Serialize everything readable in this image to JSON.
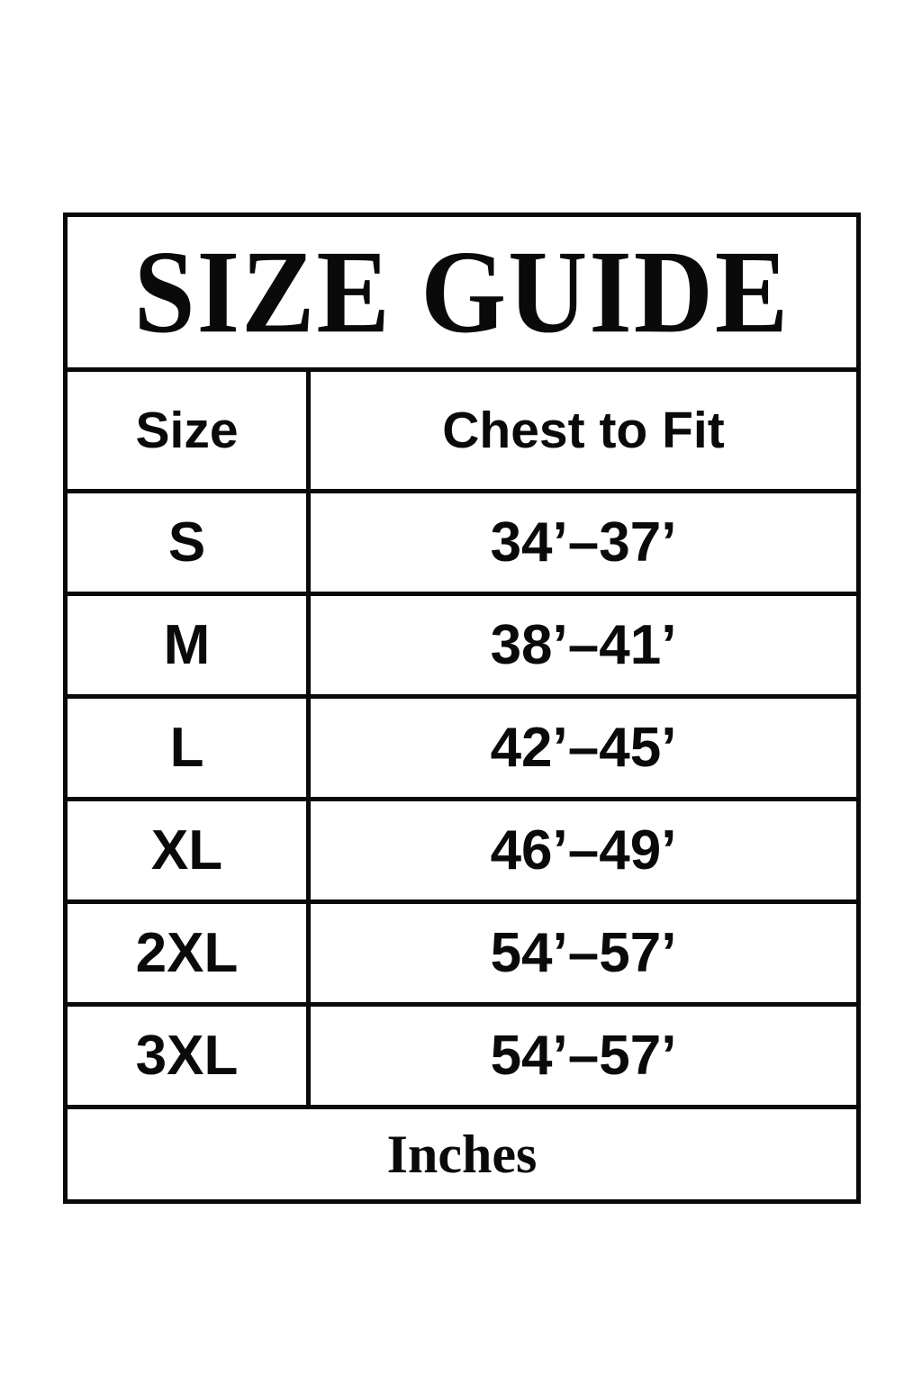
{
  "title": "SIZE GUIDE",
  "table": {
    "headers": {
      "size": "Size",
      "chest": "Chest to Fit"
    },
    "rows": [
      {
        "size": "S",
        "chest": "34’–37’"
      },
      {
        "size": "M",
        "chest": "38’–41’"
      },
      {
        "size": "L",
        "chest": "42’–45’"
      },
      {
        "size": "XL",
        "chest": "46’–49’"
      },
      {
        "size": "2XL",
        "chest": "54’–57’"
      },
      {
        "size": "3XL",
        "chest": "54’–57’"
      }
    ],
    "footer": "Inches",
    "unit": "Inches"
  },
  "colors": {
    "border": "#0a0a0a",
    "text": "#0a0a0a",
    "background": "#ffffff"
  }
}
